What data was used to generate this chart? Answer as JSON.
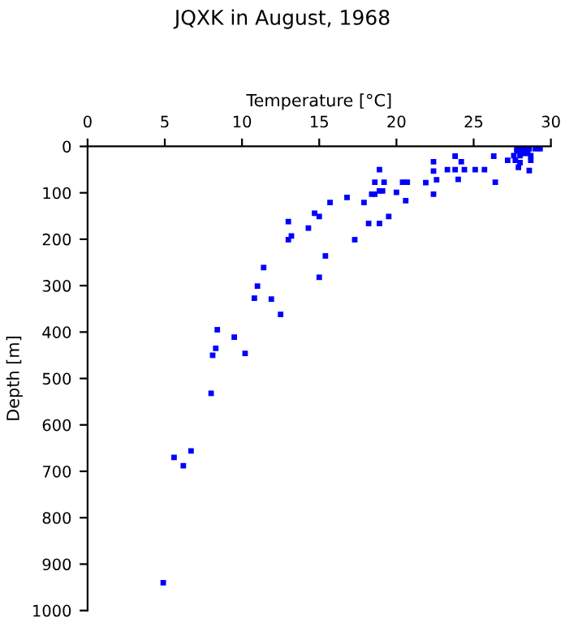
{
  "chart_data": {
    "type": "scatter",
    "title": "JQXK in August, 1968",
    "xlabel": "Temperature [°C]",
    "ylabel": "Depth [m]",
    "xlim": [
      0,
      30
    ],
    "xticks": [
      0,
      5,
      10,
      15,
      20,
      25,
      30
    ],
    "ylim": [
      1000,
      0
    ],
    "yticks": [
      0,
      100,
      200,
      300,
      400,
      500,
      600,
      700,
      800,
      900,
      1000
    ],
    "marker": "square",
    "grid": false,
    "legend": false,
    "series": [
      {
        "color": "#0000ff",
        "x": [
          18.9,
          22.4,
          22.4,
          22.6,
          21.9,
          22.4,
          23.8,
          24.2,
          23.3,
          23.8,
          24.4,
          24.0,
          25.1,
          25.7,
          26.3,
          26.4,
          18.6,
          19.2,
          18.6,
          18.9,
          19.1,
          18.4,
          20.0,
          20.4,
          20.7,
          20.6,
          17.9,
          16.8,
          15.7,
          14.7,
          15.0,
          14.3,
          13.0,
          13.2,
          13.0,
          18.2,
          18.9,
          19.5,
          17.3,
          15.4,
          15.0,
          11.4,
          11.0,
          10.8,
          11.9,
          12.5,
          8.4,
          9.5,
          8.3,
          8.1,
          10.2,
          8.0,
          6.7,
          5.6,
          6.2,
          4.9,
          27.8,
          28.0,
          28.3,
          28.6,
          29.0,
          29.3,
          27.8,
          28.5,
          27.6,
          28.0,
          28.7,
          27.2,
          27.7,
          28.0,
          28.7,
          28.6,
          27.9,
          28.1,
          28.4
        ],
        "values": [
          50,
          33,
          53,
          72,
          78,
          103,
          21,
          33,
          50,
          50,
          50,
          71,
          50,
          50,
          21,
          77,
          77,
          77,
          103,
          96,
          96,
          103,
          99,
          77,
          77,
          117,
          121,
          110,
          121,
          144,
          151,
          176,
          162,
          193,
          201,
          166,
          166,
          151,
          201,
          236,
          282,
          261,
          301,
          327,
          329,
          362,
          395,
          411,
          435,
          450,
          446,
          532,
          656,
          670,
          688,
          940,
          5,
          5,
          5,
          5,
          5,
          5,
          10,
          10,
          20,
          20,
          20,
          30,
          30,
          35,
          30,
          52,
          45,
          15,
          15
        ]
      }
    ]
  }
}
